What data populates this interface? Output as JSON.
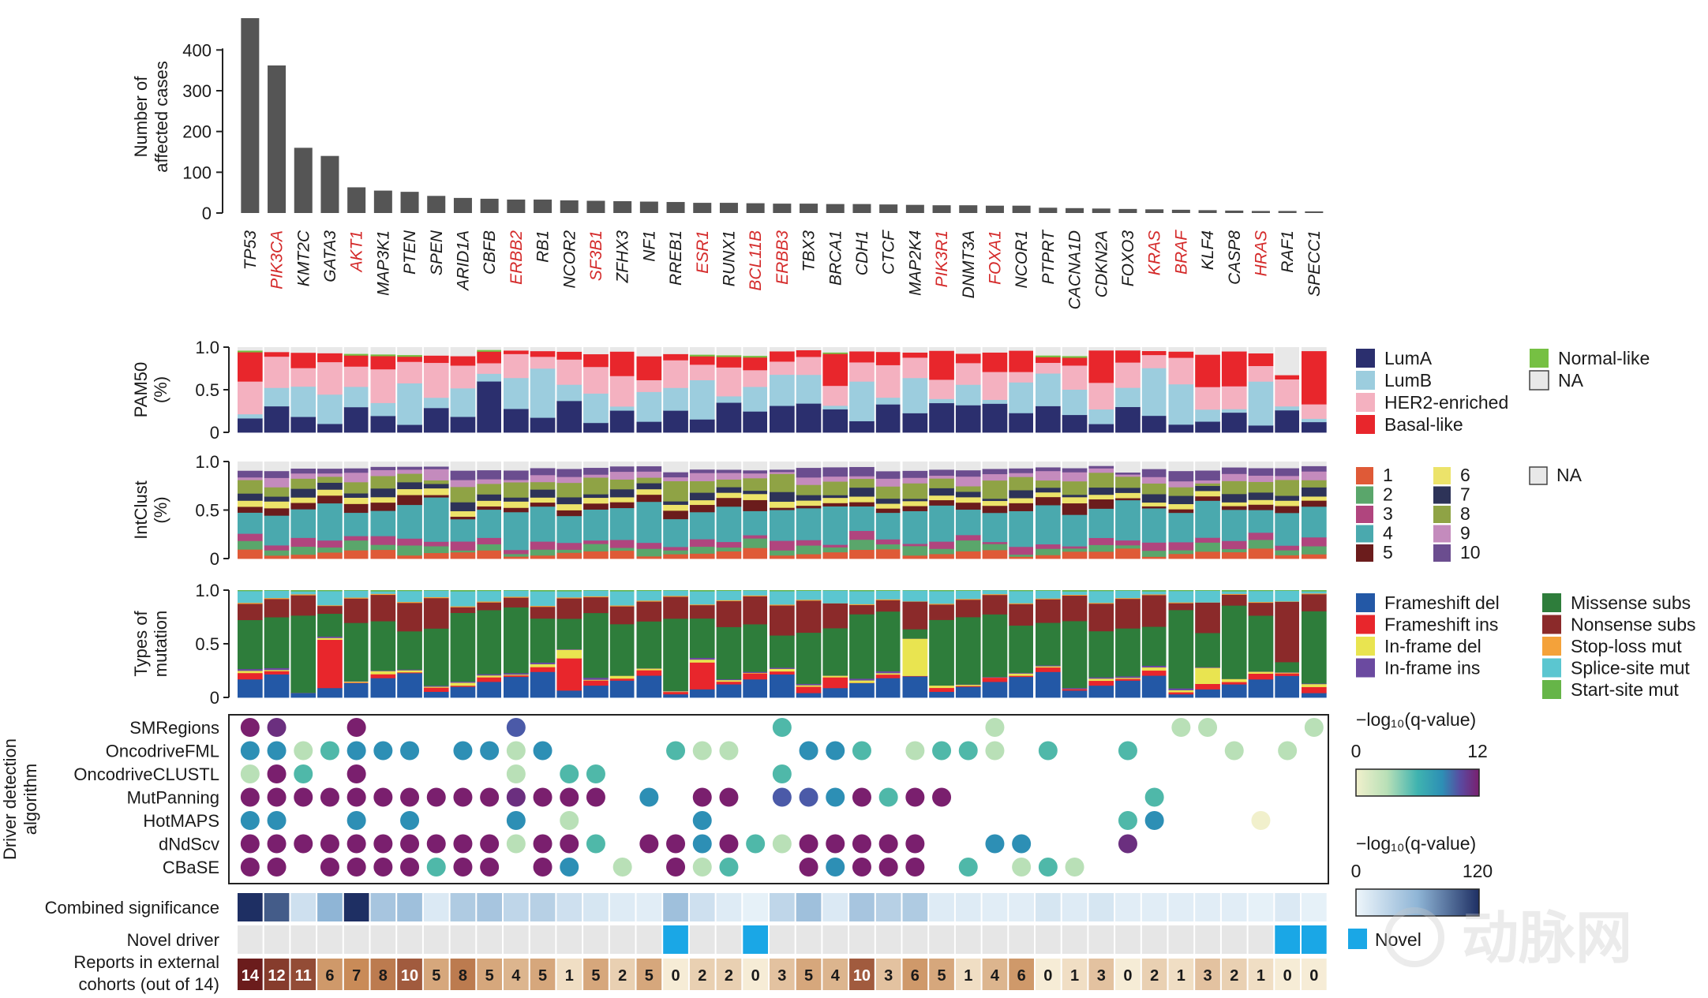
{
  "chart_data": {
    "type": "bar",
    "categories": [
      "TP53",
      "PIK3CA",
      "KMT2C",
      "GATA3",
      "AKT1",
      "MAP3K1",
      "PTEN",
      "SPEN",
      "ARID1A",
      "CBFB",
      "ERBB2",
      "RB1",
      "NCOR2",
      "SF3B1",
      "ZFHX3",
      "NF1",
      "RREB1",
      "ESR1",
      "RUNX1",
      "BCL11B",
      "ERBB3",
      "TBX3",
      "BRCA1",
      "CDH1",
      "CTCF",
      "MAP2K4",
      "PIK3R1",
      "DNMT3A",
      "FOXA1",
      "NCOR1",
      "PTPRT",
      "CACNA1D",
      "CDKN2A",
      "FOXO3",
      "KRAS",
      "BRAF",
      "KLF4",
      "CASP8",
      "HRAS",
      "RAF1",
      "SPECC1"
    ],
    "highlighted_genes": [
      "PIK3CA",
      "AKT1",
      "ERBB2",
      "SF3B1",
      "ESR1",
      "BCL11B",
      "ERBB3",
      "PIK3R1",
      "FOXA1",
      "KRAS",
      "BRAF",
      "HRAS"
    ],
    "highlight_color": "#d42a2a",
    "bar_color": "#555555",
    "group_breaks_after": [
      4,
      9,
      14,
      19,
      24,
      29,
      34,
      39
    ],
    "counts": {
      "ylabel": [
        "Number of",
        "affected cases"
      ],
      "yticks": [
        0,
        100,
        200,
        300,
        400
      ],
      "ylim": [
        0,
        480
      ],
      "values": [
        478,
        362,
        160,
        140,
        63,
        55,
        52,
        42,
        37,
        35,
        33,
        33,
        31,
        30,
        29,
        28,
        27,
        25,
        25,
        24,
        23,
        23,
        22,
        22,
        21,
        20,
        19,
        19,
        18,
        18,
        13,
        12,
        11,
        10,
        9,
        8,
        7,
        6,
        5,
        5,
        4
      ]
    },
    "pam50": {
      "ylabel": [
        "PAM50",
        "(%)"
      ],
      "yticks": [
        "0",
        "0.5",
        "1.0"
      ],
      "legend": [
        {
          "label": "LumA",
          "color": "#2b2f6e"
        },
        {
          "label": "LumB",
          "color": "#9ccdde"
        },
        {
          "label": "HER2-enriched",
          "color": "#f4b1c0"
        },
        {
          "label": "Basal-like",
          "color": "#e8262c"
        },
        {
          "label": "Normal-like",
          "color": "#76c043"
        },
        {
          "label": "NA",
          "color": "#e8e8e8"
        }
      ]
    },
    "intclust": {
      "ylabel": [
        "IntClust",
        "(%)"
      ],
      "yticks": [
        "0",
        "0.5",
        "1.0"
      ],
      "legend": [
        {
          "label": "1",
          "color": "#df5a37"
        },
        {
          "label": "2",
          "color": "#5aa66b"
        },
        {
          "label": "3",
          "color": "#b0457e"
        },
        {
          "label": "4",
          "color": "#4aa9ae"
        },
        {
          "label": "5",
          "color": "#6b1c1c"
        },
        {
          "label": "6",
          "color": "#ece36a"
        },
        {
          "label": "7",
          "color": "#2d3358"
        },
        {
          "label": "8",
          "color": "#8fa345"
        },
        {
          "label": "9",
          "color": "#c48bbd"
        },
        {
          "label": "10",
          "color": "#6b4d8f"
        },
        {
          "label": "NA",
          "color": "#e8e8e8"
        }
      ]
    },
    "mutation_types": {
      "ylabel": [
        "Types of",
        "mutation"
      ],
      "yticks": [
        "0",
        "0.5",
        "1.0"
      ],
      "legend": [
        {
          "label": "Frameshift del",
          "color": "#2358a6"
        },
        {
          "label": "Frameshift ins",
          "color": "#e8262c"
        },
        {
          "label": "In-frame del",
          "color": "#e9e450"
        },
        {
          "label": "In-frame ins",
          "color": "#6b4aa0"
        },
        {
          "label": "Missense subs",
          "color": "#2e7d3b"
        },
        {
          "label": "Nonsense subs",
          "color": "#8b2a2a"
        },
        {
          "label": "Stop-loss mut",
          "color": "#f4a23a"
        },
        {
          "label": "Splice-site mut",
          "color": "#5bc6d0"
        },
        {
          "label": "Start-site mut",
          "color": "#66b548"
        }
      ]
    },
    "driver_algorithms": {
      "ylabel": [
        "Driver detection",
        "algorithm"
      ],
      "rows": [
        "SMRegions",
        "OncodriveFML",
        "OncodriveCLUSTL",
        "MutPanning",
        "HotMAPS",
        "dNdScv",
        "CBaSE"
      ],
      "scale_label": "−log₁₀(q-value)",
      "scale_min": "0",
      "scale_max": "12",
      "scale_colors": [
        "#f1f0cc",
        "#b9e0b7",
        "#4fb8a9",
        "#2d8fb5",
        "#4b5aa8",
        "#6b2f7f",
        "#7a1f6e"
      ],
      "matrix": [
        [
          12,
          11,
          0,
          0,
          12,
          0,
          0,
          0,
          0,
          0,
          9,
          0,
          0,
          0,
          0,
          0,
          0,
          0,
          0,
          0,
          4,
          0,
          0,
          0,
          0,
          0,
          0,
          0,
          2,
          0,
          0,
          0,
          0,
          0,
          0,
          3,
          3,
          0,
          0,
          0,
          2
        ],
        [
          7,
          7,
          3,
          5,
          7,
          7,
          7,
          0,
          7,
          7,
          2,
          7,
          0,
          0,
          0,
          0,
          4,
          2,
          2,
          0,
          0,
          7,
          7,
          5,
          0,
          3,
          4,
          4,
          2,
          0,
          4,
          0,
          0,
          4,
          0,
          0,
          0,
          3,
          0,
          3,
          0
        ],
        [
          2,
          12,
          4,
          0,
          12,
          0,
          0,
          0,
          0,
          0,
          2,
          0,
          5,
          5,
          0,
          0,
          0,
          0,
          0,
          0,
          4,
          0,
          0,
          0,
          0,
          0,
          0,
          0,
          0,
          0,
          0,
          0,
          0,
          0,
          0,
          0,
          0,
          0,
          0,
          0,
          0
        ],
        [
          12,
          12,
          12,
          12,
          12,
          12,
          12,
          12,
          12,
          12,
          11,
          12,
          12,
          12,
          0,
          6,
          0,
          12,
          12,
          0,
          9,
          9,
          7,
          12,
          5,
          12,
          12,
          0,
          0,
          0,
          0,
          0,
          0,
          0,
          5,
          0,
          0,
          0,
          0,
          0,
          0
        ],
        [
          7,
          7,
          0,
          0,
          7,
          0,
          7,
          0,
          0,
          0,
          7,
          0,
          3,
          0,
          0,
          0,
          0,
          7,
          0,
          0,
          0,
          0,
          0,
          0,
          0,
          0,
          0,
          0,
          0,
          0,
          0,
          0,
          0,
          5,
          6,
          0,
          0,
          0,
          1,
          0,
          0
        ],
        [
          12,
          12,
          12,
          12,
          12,
          12,
          12,
          12,
          12,
          12,
          2,
          12,
          12,
          5,
          0,
          12,
          12,
          7,
          12,
          4,
          2,
          12,
          12,
          12,
          12,
          12,
          0,
          0,
          6,
          7,
          0,
          0,
          0,
          10,
          0,
          0,
          0,
          0,
          0,
          0,
          0
        ],
        [
          12,
          12,
          0,
          12,
          12,
          12,
          12,
          5,
          12,
          12,
          0,
          12,
          7,
          0,
          3,
          0,
          12,
          3,
          4,
          0,
          0,
          12,
          6,
          12,
          12,
          12,
          0,
          5,
          0,
          3,
          5,
          3,
          0,
          0,
          0,
          0,
          0,
          0,
          0,
          0,
          0
        ]
      ]
    },
    "combined_significance": {
      "label": "Combined significance",
      "scale_label": "−log₁₀(q-value)",
      "scale_min": "0",
      "scale_max": "120",
      "values": [
        120,
        100,
        20,
        60,
        120,
        45,
        50,
        12,
        40,
        45,
        30,
        35,
        20,
        15,
        10,
        8,
        50,
        20,
        10,
        5,
        30,
        50,
        12,
        45,
        35,
        40,
        10,
        10,
        8,
        8,
        15,
        10,
        15,
        8,
        8,
        8,
        8,
        8,
        5,
        12,
        5
      ]
    },
    "novel_driver": {
      "label": "Novel driver",
      "legend_label": "Novel",
      "color": "#1aa7e6",
      "flags": [
        0,
        0,
        0,
        0,
        0,
        0,
        0,
        0,
        0,
        0,
        0,
        0,
        0,
        0,
        0,
        0,
        1,
        0,
        0,
        1,
        0,
        0,
        0,
        0,
        0,
        0,
        0,
        0,
        0,
        0,
        0,
        0,
        0,
        0,
        0,
        0,
        0,
        0,
        0,
        1,
        1
      ]
    },
    "external_reports": {
      "label_line1": "Reports in external",
      "label_line2": "cohorts (out of 14)",
      "values": [
        14,
        12,
        11,
        6,
        7,
        8,
        10,
        5,
        8,
        5,
        4,
        5,
        1,
        5,
        2,
        5,
        0,
        2,
        2,
        0,
        3,
        5,
        4,
        10,
        3,
        6,
        5,
        1,
        4,
        6,
        0,
        1,
        3,
        0,
        2,
        1,
        3,
        2,
        1,
        0,
        0
      ]
    }
  },
  "watermark": "动脉网"
}
